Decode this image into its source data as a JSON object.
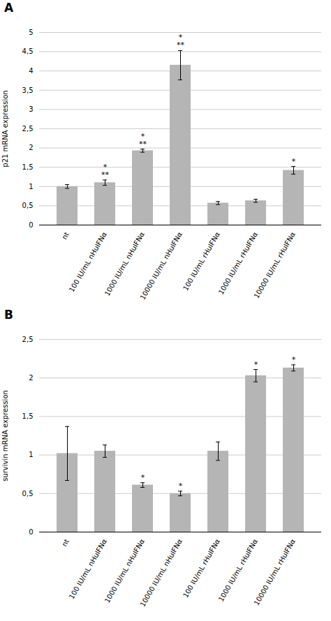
{
  "chart_data": [
    {
      "type": "bar",
      "title": "A",
      "ylabel": "p21 mRNA expression",
      "categories": [
        "nt",
        "100 IU/mL nHuIFNα",
        "1000 IU/mL nHuIFNα",
        "10000 IU/mL nHuIFNα",
        "100 IU/mL rHuIFNα",
        "1000 IU/mL rHuIFNα",
        "10000 IU/mL rHuIFNα"
      ],
      "values": [
        1.0,
        1.1,
        1.93,
        4.15,
        0.57,
        0.63,
        1.42
      ],
      "errors": [
        0.05,
        0.07,
        0.04,
        0.38,
        0.04,
        0.04,
        0.1
      ],
      "ylim": [
        0,
        5
      ],
      "yticks": [
        0,
        {
          "value": 0.5,
          "label": "0,5"
        },
        1,
        {
          "value": 1.5,
          "label": "1,5"
        },
        2,
        {
          "value": 2.5,
          "label": "2,5"
        },
        3,
        {
          "value": 3.5,
          "label": "3,5"
        },
        4,
        {
          "value": 4.5,
          "label": "4,5"
        },
        5
      ],
      "annotations": [
        {
          "category": "100 IU/mL nHuIFNα",
          "texts": [
            "**",
            "*"
          ]
        },
        {
          "category": "1000 IU/mL nHuIFNα",
          "texts": [
            "**",
            "*"
          ]
        },
        {
          "category": "10000 IU/mL nHuIFNα",
          "texts": [
            "**",
            "*"
          ]
        },
        {
          "category": "10000 IU/mL rHuIFNα",
          "texts": [
            "*"
          ]
        }
      ],
      "color": "#b5b5b5",
      "grid": true
    },
    {
      "type": "bar",
      "title": "B",
      "ylabel": "survivin mRNA expression",
      "categories": [
        "nt",
        "100 IU/mL nHuIFNα",
        "1000 IU/mL nHuIFNα",
        "10000 IU/mL nHuIFNα",
        "100 IU/mL rHuIFNα",
        "1000 IU/mL rHuIFNα",
        "10000 IU/mL rHuIFNα"
      ],
      "values": [
        1.02,
        1.05,
        0.61,
        0.5,
        1.05,
        2.03,
        2.13
      ],
      "errors": [
        0.35,
        0.08,
        0.03,
        0.03,
        0.12,
        0.08,
        0.04
      ],
      "ylim": [
        0,
        2.5
      ],
      "yticks": [
        0,
        {
          "value": 0.5,
          "label": "0,5"
        },
        1,
        {
          "value": 1.5,
          "label": "1,5"
        },
        2,
        {
          "value": 2.5,
          "label": "2,5"
        }
      ],
      "annotations": [
        {
          "category": "1000 IU/mL nHuIFNα",
          "texts": [
            "*"
          ]
        },
        {
          "category": "10000 IU/mL nHuIFNα",
          "texts": [
            "*"
          ]
        },
        {
          "category": "1000 IU/mL rHuIFNα",
          "texts": [
            "*"
          ]
        },
        {
          "category": "10000 IU/mL rHuIFNα",
          "texts": [
            "*"
          ]
        }
      ],
      "color": "#b5b5b5",
      "grid": true
    }
  ]
}
